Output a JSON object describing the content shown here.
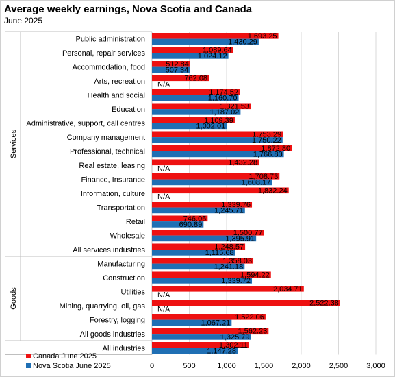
{
  "title": "Average weekly earnings, Nova Scotia and Canada",
  "subtitle": "June 2025",
  "chart_data": {
    "type": "bar",
    "orientation": "horizontal",
    "xlim": [
      0,
      3000
    ],
    "xticks": [
      "0",
      "500",
      "1,000",
      "1,500",
      "2,000",
      "2,500",
      "3,000"
    ],
    "grid": true,
    "legend_position": "bottom-left",
    "groups": [
      {
        "label": "Services",
        "categories": [
          "Public administration",
          "Personal, repair services",
          "Accommodation, food",
          "Arts, recreation",
          "Health and social",
          "Education",
          "Administrative, support, call centres",
          "Company management",
          "Professional, technical",
          "Real estate, leasing",
          "Finance, Insurance",
          "Information, culture",
          "Transportation",
          "Retail",
          "Wholesale",
          "All services industries"
        ]
      },
      {
        "label": "Goods",
        "categories": [
          "Manufacturing",
          "Construction",
          "Utilities",
          "Mining, quarrying, oil, gas",
          "Forestry, logging",
          "All goods industries"
        ]
      }
    ],
    "categories": [
      "Public administration",
      "Personal, repair services",
      "Accommodation, food",
      "Arts, recreation",
      "Health and social",
      "Education",
      "Administrative, support, call centres",
      "Company management",
      "Professional, technical",
      "Real estate, leasing",
      "Finance, Insurance",
      "Information, culture",
      "Transportation",
      "Retail",
      "Wholesale",
      "All services industries",
      "Manufacturing",
      "Construction",
      "Utilities",
      "Mining, quarrying, oil, gas",
      "Forestry, logging",
      "All goods industries",
      "All industries"
    ],
    "series": [
      {
        "name": "Canada June 2025",
        "color": "#ee1111",
        "values": [
          1693.25,
          1089.64,
          512.84,
          762.08,
          1174.52,
          1321.53,
          1109.39,
          1753.29,
          1872.8,
          1432.28,
          1708.73,
          1832.24,
          1339.76,
          746.05,
          1500.77,
          1248.57,
          1358.03,
          1594.22,
          2034.71,
          2522.38,
          1522.06,
          1562.23,
          1302.11
        ],
        "labels": [
          "1,693.25",
          "1,089.64",
          "512.84",
          "762.08",
          "1,174.52",
          "1,321.53",
          "1,109.39",
          "1,753.29",
          "1,872.80",
          "1,432.28",
          "1,708.73",
          "1,832.24",
          "1,339.76",
          "746.05",
          "1,500.77",
          "1,248.57",
          "1,358.03",
          "1,594.22",
          "2,034.71",
          "2,522.38",
          "1,522.06",
          "1,562.23",
          "1,302.11"
        ]
      },
      {
        "name": "Nova Scotia June 2025",
        "color": "#1f6fb4",
        "values": [
          1430.29,
          1024.12,
          507.34,
          null,
          1160.7,
          1187.02,
          1002.01,
          1750.22,
          1766.8,
          null,
          1608.17,
          null,
          1245.71,
          690.89,
          1395.91,
          1115.68,
          1241.18,
          1339.72,
          null,
          null,
          1067.21,
          1325.79,
          1147.28
        ],
        "labels": [
          "1,430.29",
          "1,024.12",
          "507.34",
          "N/A",
          "1,160.70",
          "1,187.02",
          "1,002.01",
          "1,750.22",
          "1,766.80",
          "N/A",
          "1,608.17",
          "N/A",
          "1,245.71",
          "690.89",
          "1,395.91",
          "1,115.68",
          "1,241.18",
          "1,339.72",
          "N/A",
          "N/A",
          "1,067.21",
          "1,325.79",
          "1,147.28"
        ]
      }
    ]
  }
}
